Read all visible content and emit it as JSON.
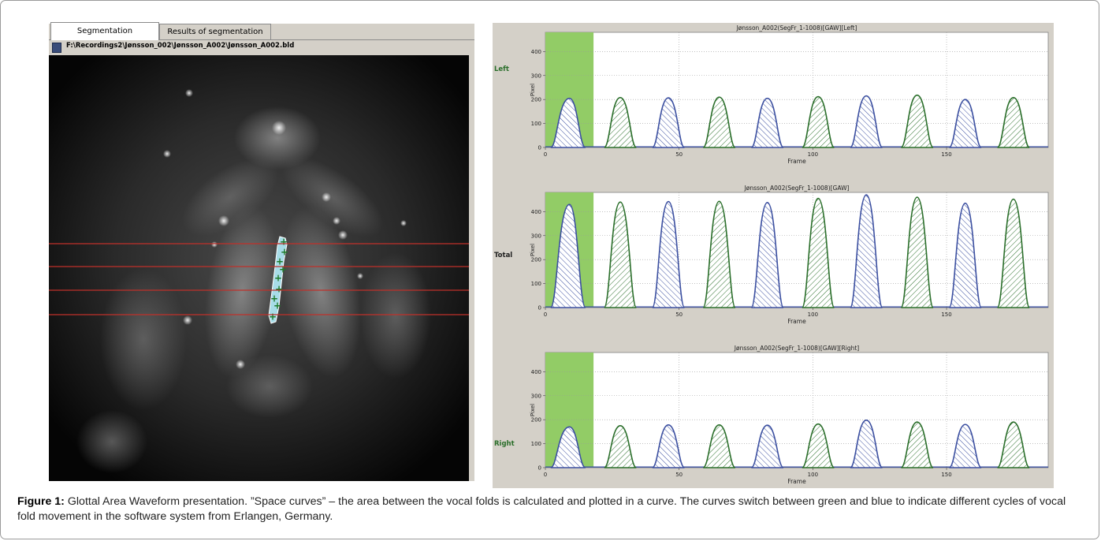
{
  "tabs": [
    {
      "label": "Segmentation",
      "active": true
    },
    {
      "label": "Results of segmentation",
      "active": false
    }
  ],
  "file_path": "F:\\Recordings2\\Jønsson_002\\Jønsson_A002\\Jønsson_A002.bld",
  "colors": {
    "cycle_green": "#2a6e2a",
    "cycle_blue": "#3b4fa0",
    "highlight_green": "#92cc66",
    "scanline_red": "#c0302a",
    "glottis_fill": "#a7dce8"
  },
  "chart_data": [
    {
      "type": "area",
      "title": "Jønsson_A002(SegFr_1-1008)[GAW][Left]",
      "side_label": "Left",
      "xlabel": "Frame",
      "ylabel": "Pixel",
      "xlim": [
        0,
        188
      ],
      "ylim": [
        0,
        480
      ],
      "x_ticks": [
        0,
        50,
        100,
        150
      ],
      "y_ticks": [
        0,
        100,
        200,
        300,
        400
      ],
      "grid": true,
      "highlight_range": [
        0,
        18
      ],
      "cycles": [
        {
          "start": 2,
          "peak_frame": 9,
          "end": 15,
          "peak": 205,
          "color": "blue"
        },
        {
          "start": 22,
          "peak_frame": 28,
          "end": 34,
          "peak": 208,
          "color": "green"
        },
        {
          "start": 40,
          "peak_frame": 46,
          "end": 52,
          "peak": 207,
          "color": "blue"
        },
        {
          "start": 59,
          "peak_frame": 65,
          "end": 71,
          "peak": 210,
          "color": "green"
        },
        {
          "start": 77,
          "peak_frame": 83,
          "end": 89,
          "peak": 205,
          "color": "blue"
        },
        {
          "start": 96,
          "peak_frame": 102,
          "end": 108,
          "peak": 212,
          "color": "green"
        },
        {
          "start": 114,
          "peak_frame": 120,
          "end": 126,
          "peak": 215,
          "color": "blue"
        },
        {
          "start": 133,
          "peak_frame": 139,
          "end": 145,
          "peak": 218,
          "color": "green"
        },
        {
          "start": 151,
          "peak_frame": 157,
          "end": 163,
          "peak": 200,
          "color": "blue"
        },
        {
          "start": 169,
          "peak_frame": 175,
          "end": 181,
          "peak": 208,
          "color": "green"
        }
      ]
    },
    {
      "type": "area",
      "title": "Jønsson_A002(SegFr_1-1008)[GAW]",
      "side_label": "Total",
      "xlabel": "Frame",
      "ylabel": "Pixel",
      "xlim": [
        0,
        188
      ],
      "ylim": [
        0,
        480
      ],
      "x_ticks": [
        0,
        50,
        100,
        150
      ],
      "y_ticks": [
        0,
        100,
        200,
        300,
        400
      ],
      "grid": true,
      "highlight_range": [
        0,
        18
      ],
      "cycles": [
        {
          "start": 2,
          "peak_frame": 9,
          "end": 15,
          "peak": 430,
          "color": "blue"
        },
        {
          "start": 22,
          "peak_frame": 28,
          "end": 34,
          "peak": 440,
          "color": "green"
        },
        {
          "start": 40,
          "peak_frame": 46,
          "end": 52,
          "peak": 442,
          "color": "blue"
        },
        {
          "start": 59,
          "peak_frame": 65,
          "end": 71,
          "peak": 443,
          "color": "green"
        },
        {
          "start": 77,
          "peak_frame": 83,
          "end": 89,
          "peak": 438,
          "color": "blue"
        },
        {
          "start": 96,
          "peak_frame": 102,
          "end": 108,
          "peak": 455,
          "color": "green"
        },
        {
          "start": 114,
          "peak_frame": 120,
          "end": 126,
          "peak": 470,
          "color": "blue"
        },
        {
          "start": 133,
          "peak_frame": 139,
          "end": 145,
          "peak": 460,
          "color": "green"
        },
        {
          "start": 151,
          "peak_frame": 157,
          "end": 163,
          "peak": 435,
          "color": "blue"
        },
        {
          "start": 169,
          "peak_frame": 175,
          "end": 181,
          "peak": 452,
          "color": "green"
        }
      ]
    },
    {
      "type": "area",
      "title": "Jønsson_A002(SegFr_1-1008)[GAW][Right]",
      "side_label": "Right",
      "xlabel": "Frame",
      "ylabel": "Pixel",
      "xlim": [
        0,
        188
      ],
      "ylim": [
        0,
        480
      ],
      "x_ticks": [
        0,
        50,
        100,
        150
      ],
      "y_ticks": [
        0,
        100,
        200,
        300,
        400
      ],
      "grid": true,
      "highlight_range": [
        0,
        18
      ],
      "cycles": [
        {
          "start": 2,
          "peak_frame": 9,
          "end": 15,
          "peak": 170,
          "color": "blue"
        },
        {
          "start": 22,
          "peak_frame": 28,
          "end": 34,
          "peak": 175,
          "color": "green"
        },
        {
          "start": 40,
          "peak_frame": 46,
          "end": 52,
          "peak": 178,
          "color": "blue"
        },
        {
          "start": 59,
          "peak_frame": 65,
          "end": 71,
          "peak": 178,
          "color": "green"
        },
        {
          "start": 77,
          "peak_frame": 83,
          "end": 89,
          "peak": 177,
          "color": "blue"
        },
        {
          "start": 96,
          "peak_frame": 102,
          "end": 108,
          "peak": 182,
          "color": "green"
        },
        {
          "start": 114,
          "peak_frame": 120,
          "end": 126,
          "peak": 198,
          "color": "blue"
        },
        {
          "start": 133,
          "peak_frame": 139,
          "end": 145,
          "peak": 190,
          "color": "green"
        },
        {
          "start": 151,
          "peak_frame": 157,
          "end": 163,
          "peak": 180,
          "color": "blue"
        },
        {
          "start": 169,
          "peak_frame": 175,
          "end": 181,
          "peak": 190,
          "color": "green"
        }
      ]
    }
  ],
  "caption": {
    "label": "Figure 1:",
    "text": " Glottal Area Waveform presentation. ”Space curves” – the area between the vocal folds is calculated and plotted in a curve. The curves switch between green and blue to indicate different cycles of vocal fold movement in the software system from Erlangen, Germany."
  }
}
